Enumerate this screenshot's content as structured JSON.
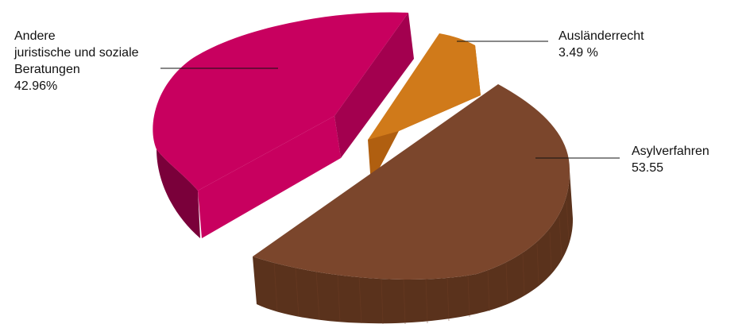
{
  "chart_data": {
    "type": "pie",
    "variant": "3d-exploded",
    "title": "",
    "slices": [
      {
        "name_lines": [
          "Andere",
          "juristische und soziale",
          "Beratungen"
        ],
        "value": 42.96,
        "value_label": "42.96%",
        "color": "#c8005f",
        "side_color": "#a3004f",
        "dark_color": "#7a003a"
      },
      {
        "name_lines": [
          "Ausländerrecht"
        ],
        "value": 3.49,
        "value_label": "3.49 %",
        "color": "#d07a1a",
        "side_color": "#b05f10"
      },
      {
        "name_lines": [
          "Asylverfahren"
        ],
        "value": 53.55,
        "value_label": "53.55",
        "color": "#7b462c",
        "side_color": "#5a321c"
      }
    ]
  }
}
